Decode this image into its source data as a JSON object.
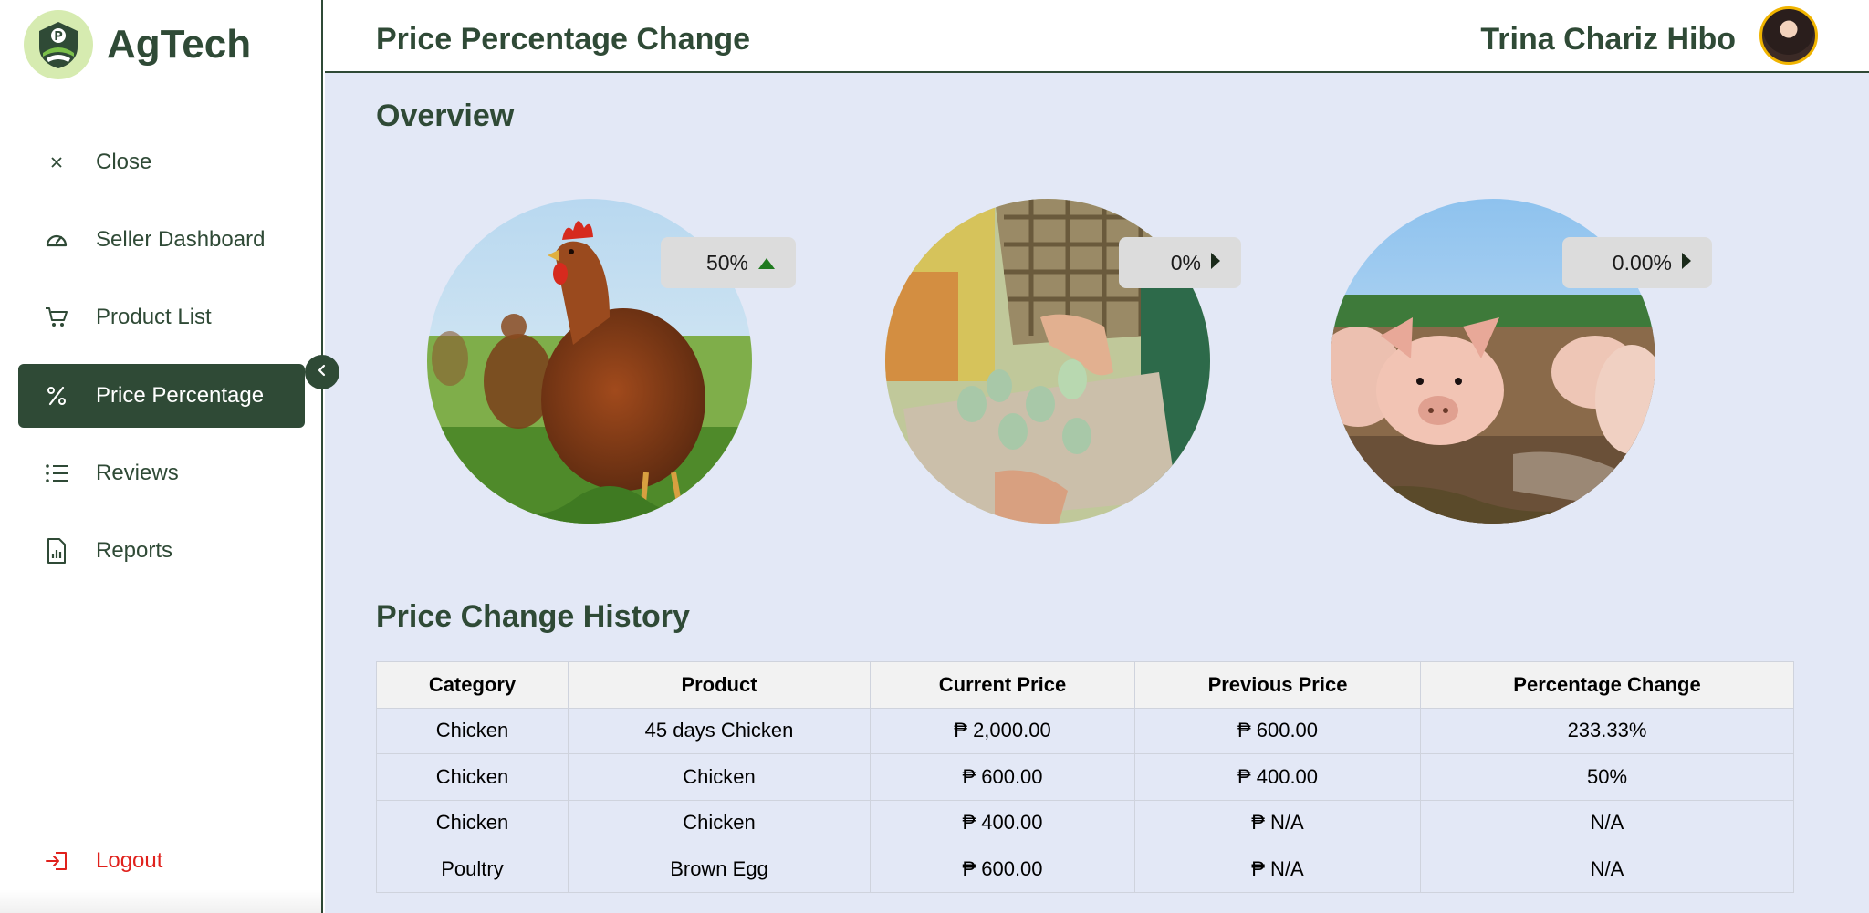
{
  "brand": {
    "name": "AgTech",
    "logo_icon": "farm-logo-icon"
  },
  "sidebar": {
    "items": [
      {
        "label": "Close",
        "icon": "close-icon"
      },
      {
        "label": "Seller Dashboard",
        "icon": "gauge-icon"
      },
      {
        "label": "Product List",
        "icon": "cart-icon"
      },
      {
        "label": "Price Percentage",
        "icon": "percent-icon",
        "active": true
      },
      {
        "label": "Reviews",
        "icon": "list-icon"
      },
      {
        "label": "Reports",
        "icon": "report-icon"
      }
    ],
    "logout": {
      "label": "Logout",
      "icon": "logout-icon"
    }
  },
  "header": {
    "title": "Price Percentage Change",
    "user_name": "Trina Chariz Hibo"
  },
  "overview": {
    "title": "Overview",
    "cards": [
      {
        "image": "chicken",
        "change": "50%",
        "trend": "up"
      },
      {
        "image": "eggs",
        "change": "0%",
        "trend": "neutral"
      },
      {
        "image": "pigs",
        "change": "0.00%",
        "trend": "neutral"
      }
    ]
  },
  "history": {
    "title": "Price Change History",
    "columns": [
      "Category",
      "Product",
      "Current Price",
      "Previous Price",
      "Percentage Change"
    ],
    "rows": [
      [
        "Chicken",
        "45 days Chicken",
        "₱ 2,000.00",
        "₱ 600.00",
        "233.33%"
      ],
      [
        "Chicken",
        "Chicken",
        "₱ 600.00",
        "₱ 400.00",
        "50%"
      ],
      [
        "Chicken",
        "Chicken",
        "₱ 400.00",
        "₱ N/A",
        "N/A"
      ],
      [
        "Poultry",
        "Brown Egg",
        "₱ 600.00",
        "₱ N/A",
        "N/A"
      ]
    ]
  },
  "colors": {
    "primary": "#2f4a36",
    "background": "#e3e8f6",
    "logout": "#e0211c",
    "trend_up": "#1f7a1f"
  }
}
